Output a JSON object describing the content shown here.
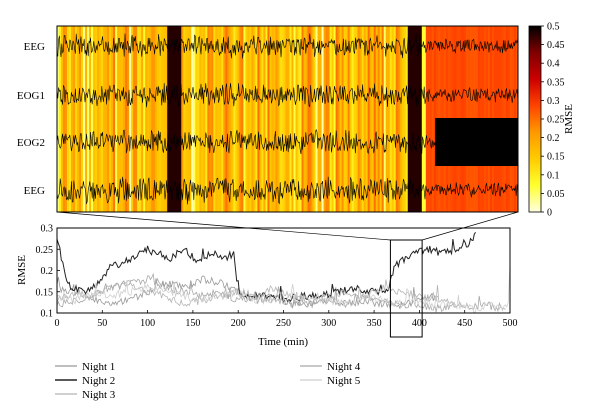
{
  "chart_data": [
    {
      "type": "heatmap",
      "channels": [
        "EEG",
        "EOG1",
        "EOG2",
        "EEG"
      ],
      "colorbar": {
        "label": "RMSE",
        "range": [
          0,
          0.5
        ],
        "ticks": [
          0,
          0.05,
          0.1,
          0.15,
          0.2,
          0.25,
          0.3,
          0.35,
          0.4,
          0.45,
          0.5
        ],
        "tick_labels": [
          "0",
          "0.05",
          "0.1",
          "0.15",
          "0.2",
          "0.25",
          "0.3",
          "0.35",
          "0.4",
          "0.45",
          "0.5"
        ],
        "colormap": [
          "#ffffe0",
          "#ffff30",
          "#ffcc00",
          "#ff9900",
          "#ff4400",
          "#cc0000",
          "#800000",
          "#000000"
        ]
      },
      "time_range_min": [
        368,
        403
      ],
      "segments": [
        {
          "from": 0.0,
          "to": 0.24,
          "rmse": 0.15
        },
        {
          "from": 0.24,
          "to": 0.27,
          "rmse": 0.48
        },
        {
          "from": 0.27,
          "to": 0.76,
          "rmse": 0.15
        },
        {
          "from": 0.76,
          "to": 0.79,
          "rmse": 0.48
        },
        {
          "from": 0.79,
          "to": 0.8,
          "rmse": 0.15
        },
        {
          "from": 0.8,
          "to": 1.0,
          "rmse": 0.28
        }
      ],
      "eog2_saturated": {
        "from": 0.82,
        "to": 1.0,
        "rmse": 0.5
      }
    },
    {
      "type": "line",
      "xlabel": "Time (min)",
      "ylabel": "RMSE",
      "xlim": [
        0,
        500
      ],
      "ylim": [
        0.1,
        0.3
      ],
      "xticks": [
        0,
        50,
        100,
        150,
        200,
        250,
        300,
        350,
        400,
        450,
        500
      ],
      "yticks": [
        0.1,
        0.15,
        0.2,
        0.25,
        0.3
      ],
      "zoom_window": {
        "x": [
          368,
          403
        ]
      },
      "series": [
        {
          "name": "Night 1",
          "color": "#999999",
          "x": [
            0,
            20,
            40,
            60,
            80,
            100,
            120,
            140,
            160,
            180,
            200,
            220,
            240,
            260,
            280,
            300,
            320,
            340,
            360,
            380,
            400,
            420
          ],
          "y": [
            0.16,
            0.15,
            0.13,
            0.12,
            0.13,
            0.15,
            0.17,
            0.16,
            0.18,
            0.17,
            0.15,
            0.13,
            0.14,
            0.12,
            0.12,
            0.13,
            0.12,
            0.13,
            0.12,
            0.12,
            0.13,
            0.14
          ]
        },
        {
          "name": "Night 2",
          "color": "#222222",
          "x": [
            0,
            8,
            15,
            30,
            45,
            60,
            75,
            90,
            100,
            110,
            125,
            140,
            155,
            170,
            185,
            195,
            200,
            215,
            230,
            250,
            270,
            290,
            310,
            330,
            350,
            365,
            372,
            380,
            395,
            410,
            425,
            440,
            455,
            462
          ],
          "y": [
            0.28,
            0.2,
            0.16,
            0.15,
            0.17,
            0.21,
            0.22,
            0.24,
            0.25,
            0.24,
            0.23,
            0.25,
            0.22,
            0.24,
            0.23,
            0.24,
            0.15,
            0.14,
            0.14,
            0.13,
            0.14,
            0.14,
            0.15,
            0.16,
            0.15,
            0.15,
            0.21,
            0.22,
            0.24,
            0.25,
            0.24,
            0.25,
            0.26,
            0.29
          ]
        },
        {
          "name": "Night 3",
          "color": "#b5b5b5",
          "x": [
            0,
            20,
            40,
            60,
            80,
            100,
            120,
            140,
            160,
            180,
            200,
            220,
            240,
            260,
            280,
            300,
            320,
            340,
            360,
            380,
            400,
            420,
            440
          ],
          "y": [
            0.13,
            0.15,
            0.14,
            0.16,
            0.17,
            0.15,
            0.14,
            0.12,
            0.13,
            0.14,
            0.15,
            0.14,
            0.16,
            0.14,
            0.13,
            0.14,
            0.15,
            0.14,
            0.16,
            0.15,
            0.14,
            0.13,
            0.12
          ]
        },
        {
          "name": "Night 4",
          "color": "#a8a8a8",
          "x": [
            0,
            20,
            40,
            60,
            80,
            100,
            120,
            140,
            160,
            180,
            200,
            220,
            240,
            260,
            280,
            300,
            320,
            340,
            360,
            380,
            400,
            420,
            440,
            460,
            475,
            485,
            490,
            495
          ],
          "y": [
            0.12,
            0.13,
            0.14,
            0.16,
            0.17,
            0.18,
            0.16,
            0.15,
            0.14,
            0.15,
            0.13,
            0.14,
            0.13,
            0.12,
            0.12,
            0.13,
            0.12,
            0.14,
            0.13,
            0.12,
            0.12,
            0.11,
            0.12,
            0.11,
            0.12,
            0.11,
            0.12,
            0.11
          ]
        },
        {
          "name": "Night 5",
          "color": "#cfcfcf",
          "x": [
            0,
            20,
            40,
            60,
            80,
            100,
            120,
            140,
            160,
            180,
            200,
            220,
            240,
            260,
            280,
            300,
            320,
            340,
            360,
            380,
            400,
            420,
            440,
            460,
            480,
            490,
            498,
            502
          ],
          "y": [
            0.14,
            0.13,
            0.15,
            0.14,
            0.15,
            0.16,
            0.15,
            0.14,
            0.13,
            0.14,
            0.15,
            0.13,
            0.13,
            0.14,
            0.13,
            0.13,
            0.12,
            0.14,
            0.13,
            0.12,
            0.13,
            0.12,
            0.12,
            0.11,
            0.12,
            0.11,
            0.12,
            0.3
          ]
        }
      ]
    }
  ]
}
